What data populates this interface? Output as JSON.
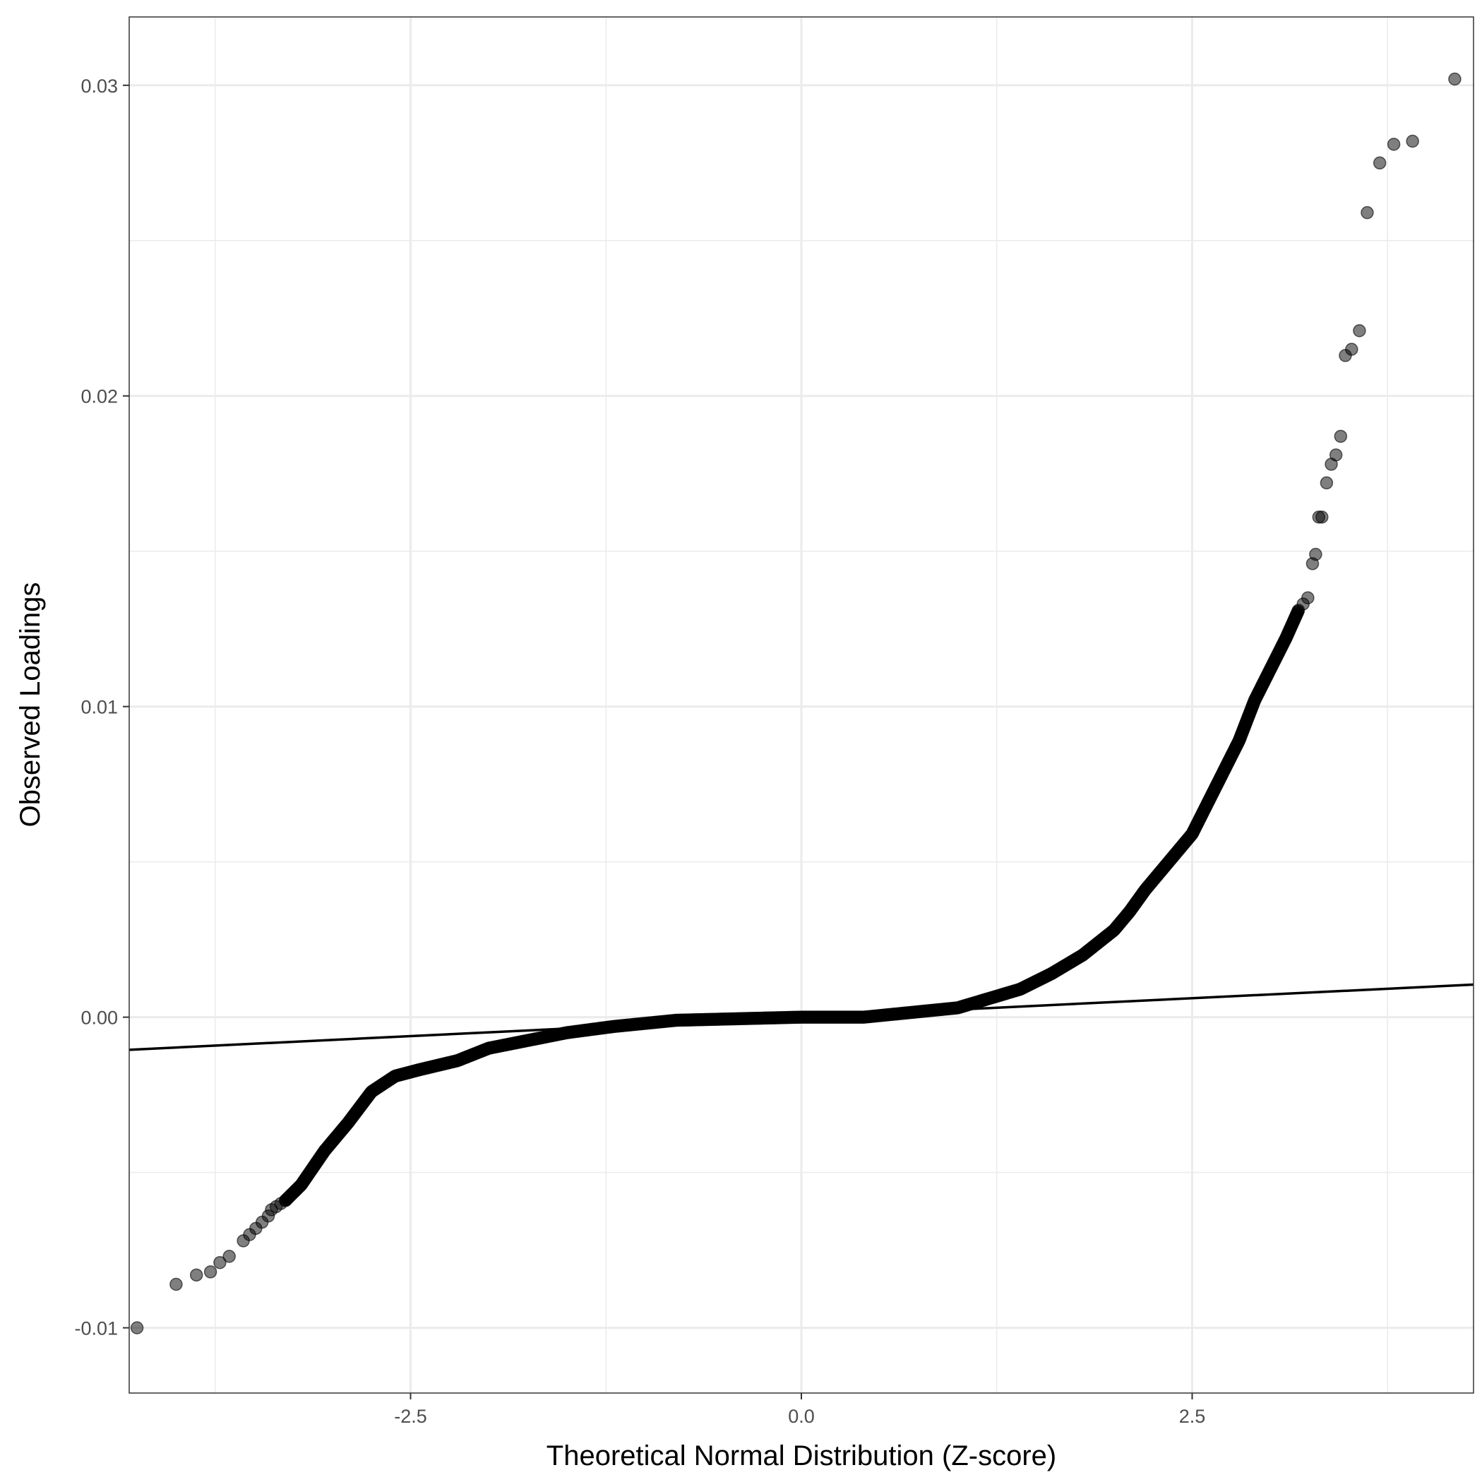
{
  "chart_data": {
    "type": "scatter",
    "subtype": "qq-plot",
    "title": "",
    "xlabel": "Theoretical Normal Distribution (Z-score)",
    "ylabel": "Observed Loadings",
    "xlim": [
      -4.3,
      4.3
    ],
    "ylim": [
      -0.0121,
      0.0322
    ],
    "x_ticks": [
      {
        "value": -2.5,
        "label": "-2.5"
      },
      {
        "value": 0,
        "label": "0.0"
      },
      {
        "value": 2.5,
        "label": "2.5"
      }
    ],
    "y_ticks": [
      {
        "value": -0.01,
        "label": "-0.01"
      },
      {
        "value": 0,
        "label": "0.00"
      },
      {
        "value": 0.01,
        "label": "0.01"
      },
      {
        "value": 0.02,
        "label": "0.02"
      },
      {
        "value": 0.03,
        "label": "0.03"
      }
    ],
    "grid": true,
    "legend": "none",
    "point_color": "#000000",
    "point_opacity": 0.5,
    "reference_line": {
      "slope": 0.000244,
      "intercept": 0.0
    },
    "tail_points": [
      {
        "x": -4.25,
        "y": -0.01
      },
      {
        "x": -4.0,
        "y": -0.0086
      },
      {
        "x": -3.87,
        "y": -0.0083
      },
      {
        "x": -3.78,
        "y": -0.0082
      },
      {
        "x": -3.72,
        "y": -0.0079
      },
      {
        "x": -3.66,
        "y": -0.0077
      },
      {
        "x": -3.57,
        "y": -0.0072
      },
      {
        "x": -3.53,
        "y": -0.007
      },
      {
        "x": -3.49,
        "y": -0.0068
      },
      {
        "x": -3.45,
        "y": -0.0066
      },
      {
        "x": -3.41,
        "y": -0.0064
      },
      {
        "x": -3.39,
        "y": -0.0062
      },
      {
        "x": -3.36,
        "y": -0.0061
      },
      {
        "x": -3.33,
        "y": -0.006
      },
      {
        "x": -3.3,
        "y": -0.0059
      },
      {
        "x": 3.18,
        "y": 0.0131
      },
      {
        "x": 3.21,
        "y": 0.0133
      },
      {
        "x": 3.24,
        "y": 0.0135
      },
      {
        "x": 3.27,
        "y": 0.0146
      },
      {
        "x": 3.29,
        "y": 0.0149
      },
      {
        "x": 3.31,
        "y": 0.0161
      },
      {
        "x": 3.33,
        "y": 0.0161
      },
      {
        "x": 3.36,
        "y": 0.0172
      },
      {
        "x": 3.39,
        "y": 0.0178
      },
      {
        "x": 3.42,
        "y": 0.0181
      },
      {
        "x": 3.45,
        "y": 0.0187
      },
      {
        "x": 3.48,
        "y": 0.0213
      },
      {
        "x": 3.52,
        "y": 0.0215
      },
      {
        "x": 3.57,
        "y": 0.0221
      },
      {
        "x": 3.62,
        "y": 0.0259
      },
      {
        "x": 3.7,
        "y": 0.0275
      },
      {
        "x": 3.79,
        "y": 0.0281
      },
      {
        "x": 3.91,
        "y": 0.0282
      },
      {
        "x": 4.18,
        "y": 0.0302
      }
    ],
    "dense_curve": [
      {
        "x": -3.3,
        "y": -0.0059
      },
      {
        "x": -3.2,
        "y": -0.0054
      },
      {
        "x": -3.05,
        "y": -0.0043
      },
      {
        "x": -2.9,
        "y": -0.0034
      },
      {
        "x": -2.75,
        "y": -0.0024
      },
      {
        "x": -2.6,
        "y": -0.0019
      },
      {
        "x": -2.45,
        "y": -0.0017
      },
      {
        "x": -2.2,
        "y": -0.0014
      },
      {
        "x": -2.0,
        "y": -0.001
      },
      {
        "x": -1.8,
        "y": -0.0008
      },
      {
        "x": -1.5,
        "y": -0.0005
      },
      {
        "x": -1.2,
        "y": -0.0003
      },
      {
        "x": -0.8,
        "y": -0.0001
      },
      {
        "x": -0.4,
        "y": -5e-05
      },
      {
        "x": 0.0,
        "y": 0.0
      },
      {
        "x": 0.4,
        "y": 0.0
      },
      {
        "x": 0.8,
        "y": 0.0002
      },
      {
        "x": 1.0,
        "y": 0.0003
      },
      {
        "x": 1.2,
        "y": 0.0006
      },
      {
        "x": 1.4,
        "y": 0.0009
      },
      {
        "x": 1.6,
        "y": 0.0014
      },
      {
        "x": 1.8,
        "y": 0.002
      },
      {
        "x": 2.0,
        "y": 0.0028
      },
      {
        "x": 2.1,
        "y": 0.0034
      },
      {
        "x": 2.2,
        "y": 0.0041
      },
      {
        "x": 2.3,
        "y": 0.0047
      },
      {
        "x": 2.4,
        "y": 0.0053
      },
      {
        "x": 2.5,
        "y": 0.0059
      },
      {
        "x": 2.6,
        "y": 0.0069
      },
      {
        "x": 2.7,
        "y": 0.0079
      },
      {
        "x": 2.8,
        "y": 0.0089
      },
      {
        "x": 2.9,
        "y": 0.0102
      },
      {
        "x": 3.0,
        "y": 0.0112
      },
      {
        "x": 3.1,
        "y": 0.0122
      },
      {
        "x": 3.18,
        "y": 0.0131
      }
    ]
  }
}
